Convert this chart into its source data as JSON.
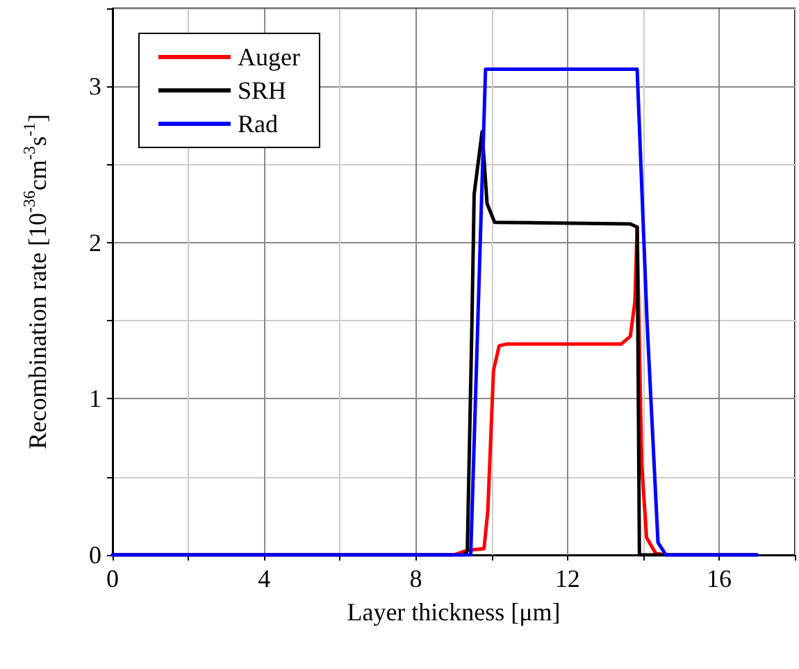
{
  "chart_data": {
    "type": "line",
    "xlabel": "Layer thickness [μm]",
    "ylabel": "Recombination rate [10$^{-36}$cm$^{-3}$s$^{-1}$]",
    "xlim": [
      0,
      18
    ],
    "ylim": [
      0,
      3.5
    ],
    "xticks": [
      0,
      {
        "value": 2,
        "label": null
      },
      4,
      {
        "value": 6,
        "label": null
      },
      8,
      {
        "value": 10,
        "label": null
      },
      12,
      {
        "value": 14,
        "label": null
      },
      16,
      {
        "value": 18,
        "label": null
      }
    ],
    "yticks": [
      0,
      {
        "value": 0.5,
        "label": null
      },
      1,
      {
        "value": 1.5,
        "label": null
      },
      2,
      {
        "value": 2.5,
        "label": null
      },
      3,
      {
        "value": 3.5,
        "label": null
      }
    ],
    "grid": true,
    "legend": "top left",
    "marker": "none",
    "line_style": "solid",
    "series": [
      {
        "name": "Auger",
        "color": "#ff0000",
        "x": [
          0,
          9.0,
          9.36,
          9.8,
          9.9,
          10.05,
          10.2,
          10.39,
          13.42,
          13.66,
          13.78,
          13.84,
          13.96,
          14.09,
          14.33,
          14.6,
          17
        ],
        "values": [
          0,
          0,
          0.03,
          0.04,
          0.28,
          1.18,
          1.34,
          1.35,
          1.35,
          1.4,
          1.62,
          2.1,
          0.58,
          0.11,
          0.01,
          0,
          0
        ]
      },
      {
        "name": "SRH",
        "color": "#000000",
        "x": [
          0,
          9.3,
          9.36,
          9.48,
          9.54,
          9.75,
          9.88,
          10.08,
          13.66,
          13.84,
          13.9,
          14.5,
          17
        ],
        "values": [
          0,
          0,
          0.03,
          1.47,
          2.31,
          2.71,
          2.25,
          2.13,
          2.12,
          2.1,
          0,
          0,
          0
        ]
      },
      {
        "name": "Rad",
        "color": "#0000ff",
        "x": [
          0,
          9.45,
          9.6,
          9.84,
          13.84,
          14.1,
          14.39,
          14.6,
          17
        ],
        "values": [
          0,
          0,
          1.2,
          3.11,
          3.11,
          1.5,
          0.08,
          0,
          0
        ]
      }
    ]
  }
}
